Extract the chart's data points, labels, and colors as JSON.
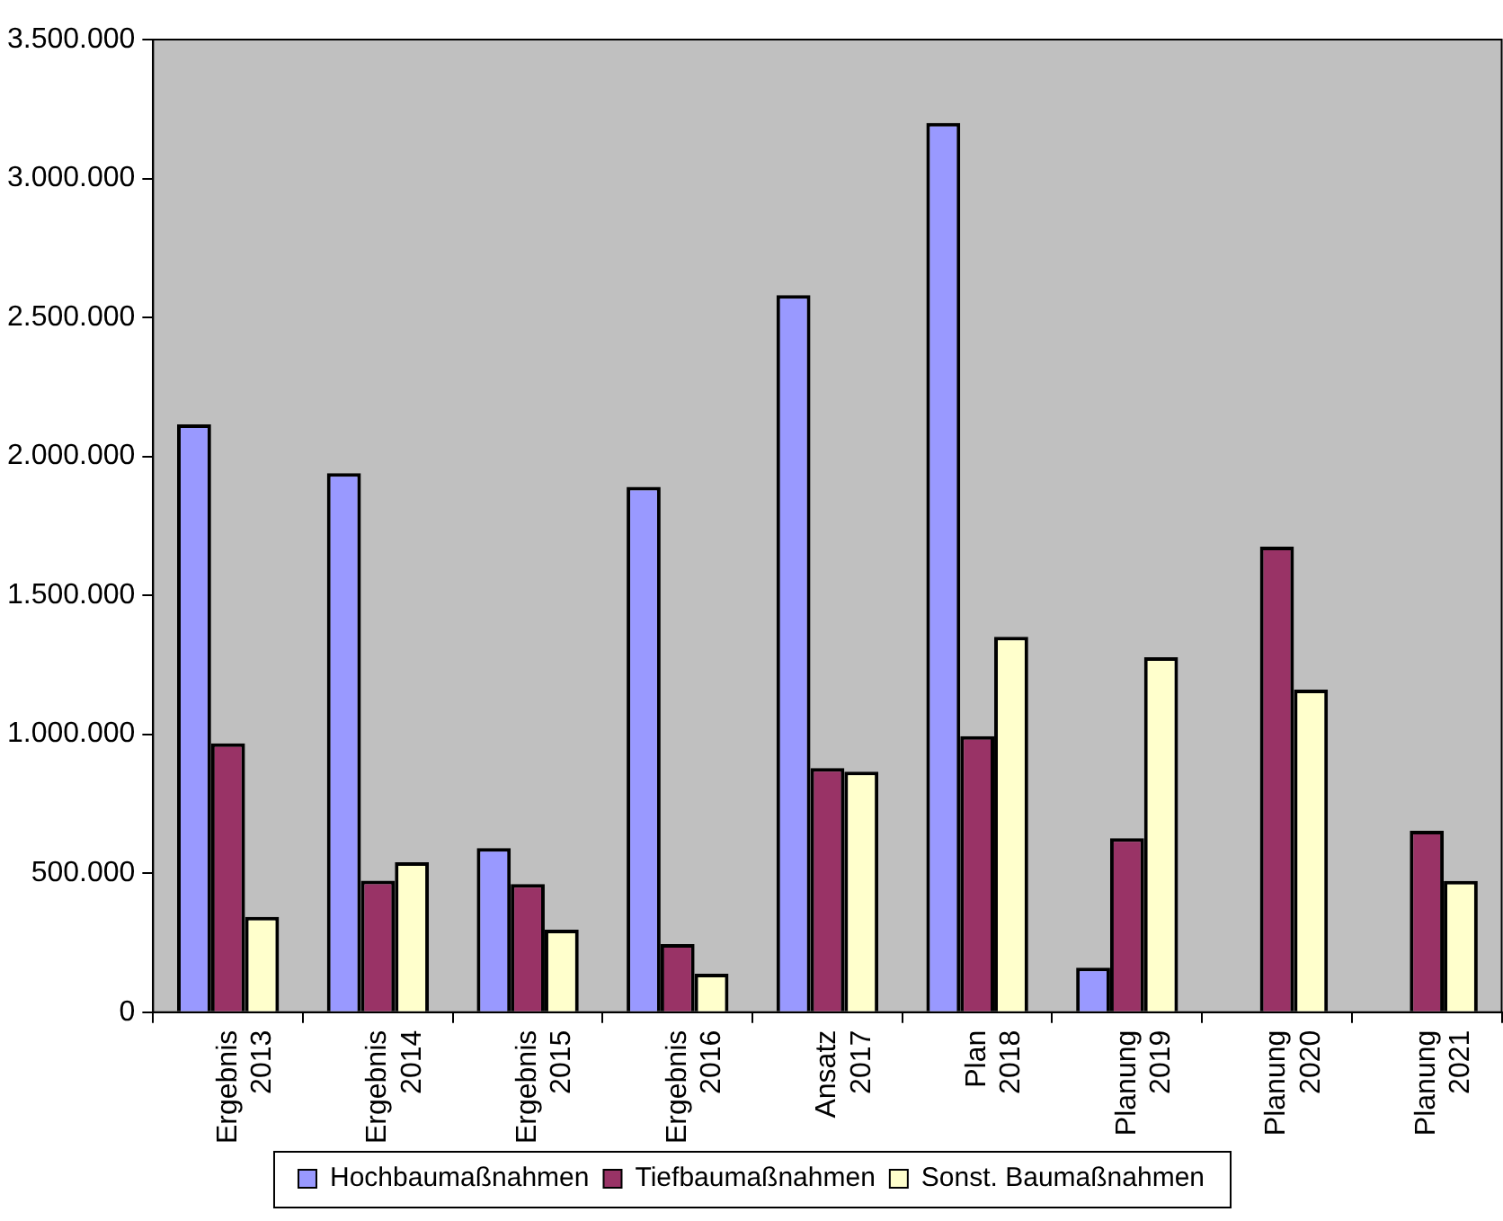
{
  "chart_data": {
    "type": "bar",
    "categories": [
      "Ergebnis 2013",
      "Ergebnis 2014",
      "Ergebnis 2015",
      "Ergebnis 2016",
      "Ansatz 2017",
      "Plan 2018",
      "Planung 2019",
      "Planung 2020",
      "Planung 2021"
    ],
    "series": [
      {
        "name": "Hochbaumaßnahmen",
        "color": "#9999ff",
        "values": [
          2115000,
          1940000,
          590000,
          1890000,
          2580000,
          3200000,
          160000,
          null,
          null
        ]
      },
      {
        "name": "Tiefbaumaßnahmen",
        "color": "#993366",
        "values": [
          967000,
          473000,
          461000,
          245000,
          878000,
          993000,
          626000,
          1675000,
          653000
        ]
      },
      {
        "name": "Sonst. Baumaßnahmen",
        "color": "#ffffcc",
        "values": [
          343000,
          539000,
          297000,
          138000,
          865000,
          1351000,
          1277000,
          1161000,
          472000
        ]
      }
    ],
    "ylim": [
      0,
      3500000
    ],
    "yticks": [
      {
        "value": 0,
        "label": "0"
      },
      {
        "value": 500000,
        "label": "500.000"
      },
      {
        "value": 1000000,
        "label": "1.000.000"
      },
      {
        "value": 1500000,
        "label": "1.500.000"
      },
      {
        "value": 2000000,
        "label": "2.000.000"
      },
      {
        "value": 2500000,
        "label": "2.500.000"
      },
      {
        "value": 3000000,
        "label": "3.000.000"
      },
      {
        "value": 3500000,
        "label": "3.500.000"
      }
    ],
    "grid": false,
    "legend": "bottom"
  }
}
